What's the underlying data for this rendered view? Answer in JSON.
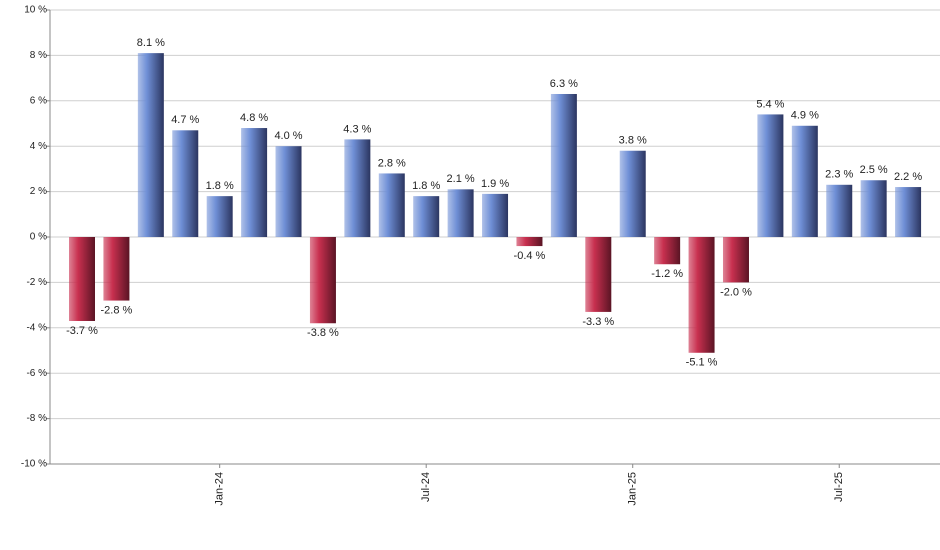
{
  "chart_data": {
    "type": "bar",
    "categories": [
      null,
      null,
      null,
      null,
      "Jan-24",
      null,
      null,
      null,
      null,
      null,
      "Jul-24",
      null,
      null,
      null,
      null,
      null,
      "Jan-25",
      null,
      null,
      null,
      null,
      null,
      "Jul-25",
      null,
      null
    ],
    "values": [
      -3.7,
      -2.8,
      8.1,
      4.7,
      1.8,
      4.8,
      4.0,
      -3.8,
      4.3,
      2.8,
      1.8,
      2.1,
      1.9,
      -0.4,
      6.3,
      -3.3,
      3.8,
      -1.2,
      -5.1,
      -2.0,
      5.4,
      4.9,
      2.3,
      2.5,
      2.2
    ],
    "value_labels": [
      "-3.7 %",
      "-2.8 %",
      "8.1 %",
      "4.7 %",
      "1.8 %",
      "4.8 %",
      "4.0 %",
      "-3.8 %",
      "4.3 %",
      "2.8 %",
      "1.8 %",
      "2.1 %",
      "1.9 %",
      "-0.4 %",
      "6.3 %",
      "-3.3 %",
      "3.8 %",
      "-1.2 %",
      "-5.1 %",
      "-2.0 %",
      "5.4 %",
      "4.9 %",
      "2.3 %",
      "2.5 %",
      "2.2 %"
    ],
    "positive_color": "#6f8fd6",
    "negative_color": "#c8304f",
    "ylim": [
      -10,
      10
    ],
    "yticks": [
      {
        "value": -10,
        "label": "-10 %"
      },
      {
        "value": -8,
        "label": "-8 %"
      },
      {
        "value": -6,
        "label": "-6 %"
      },
      {
        "value": -4,
        "label": "-4 %"
      },
      {
        "value": -2,
        "label": "-2 %"
      },
      {
        "value": 0,
        "label": "0 %"
      },
      {
        "value": 2,
        "label": "2 %"
      },
      {
        "value": 4,
        "label": "4 %"
      },
      {
        "value": 6,
        "label": "6 %"
      },
      {
        "value": 8,
        "label": "8 %"
      },
      {
        "value": 10,
        "label": "10 %"
      }
    ],
    "grid": true
  }
}
